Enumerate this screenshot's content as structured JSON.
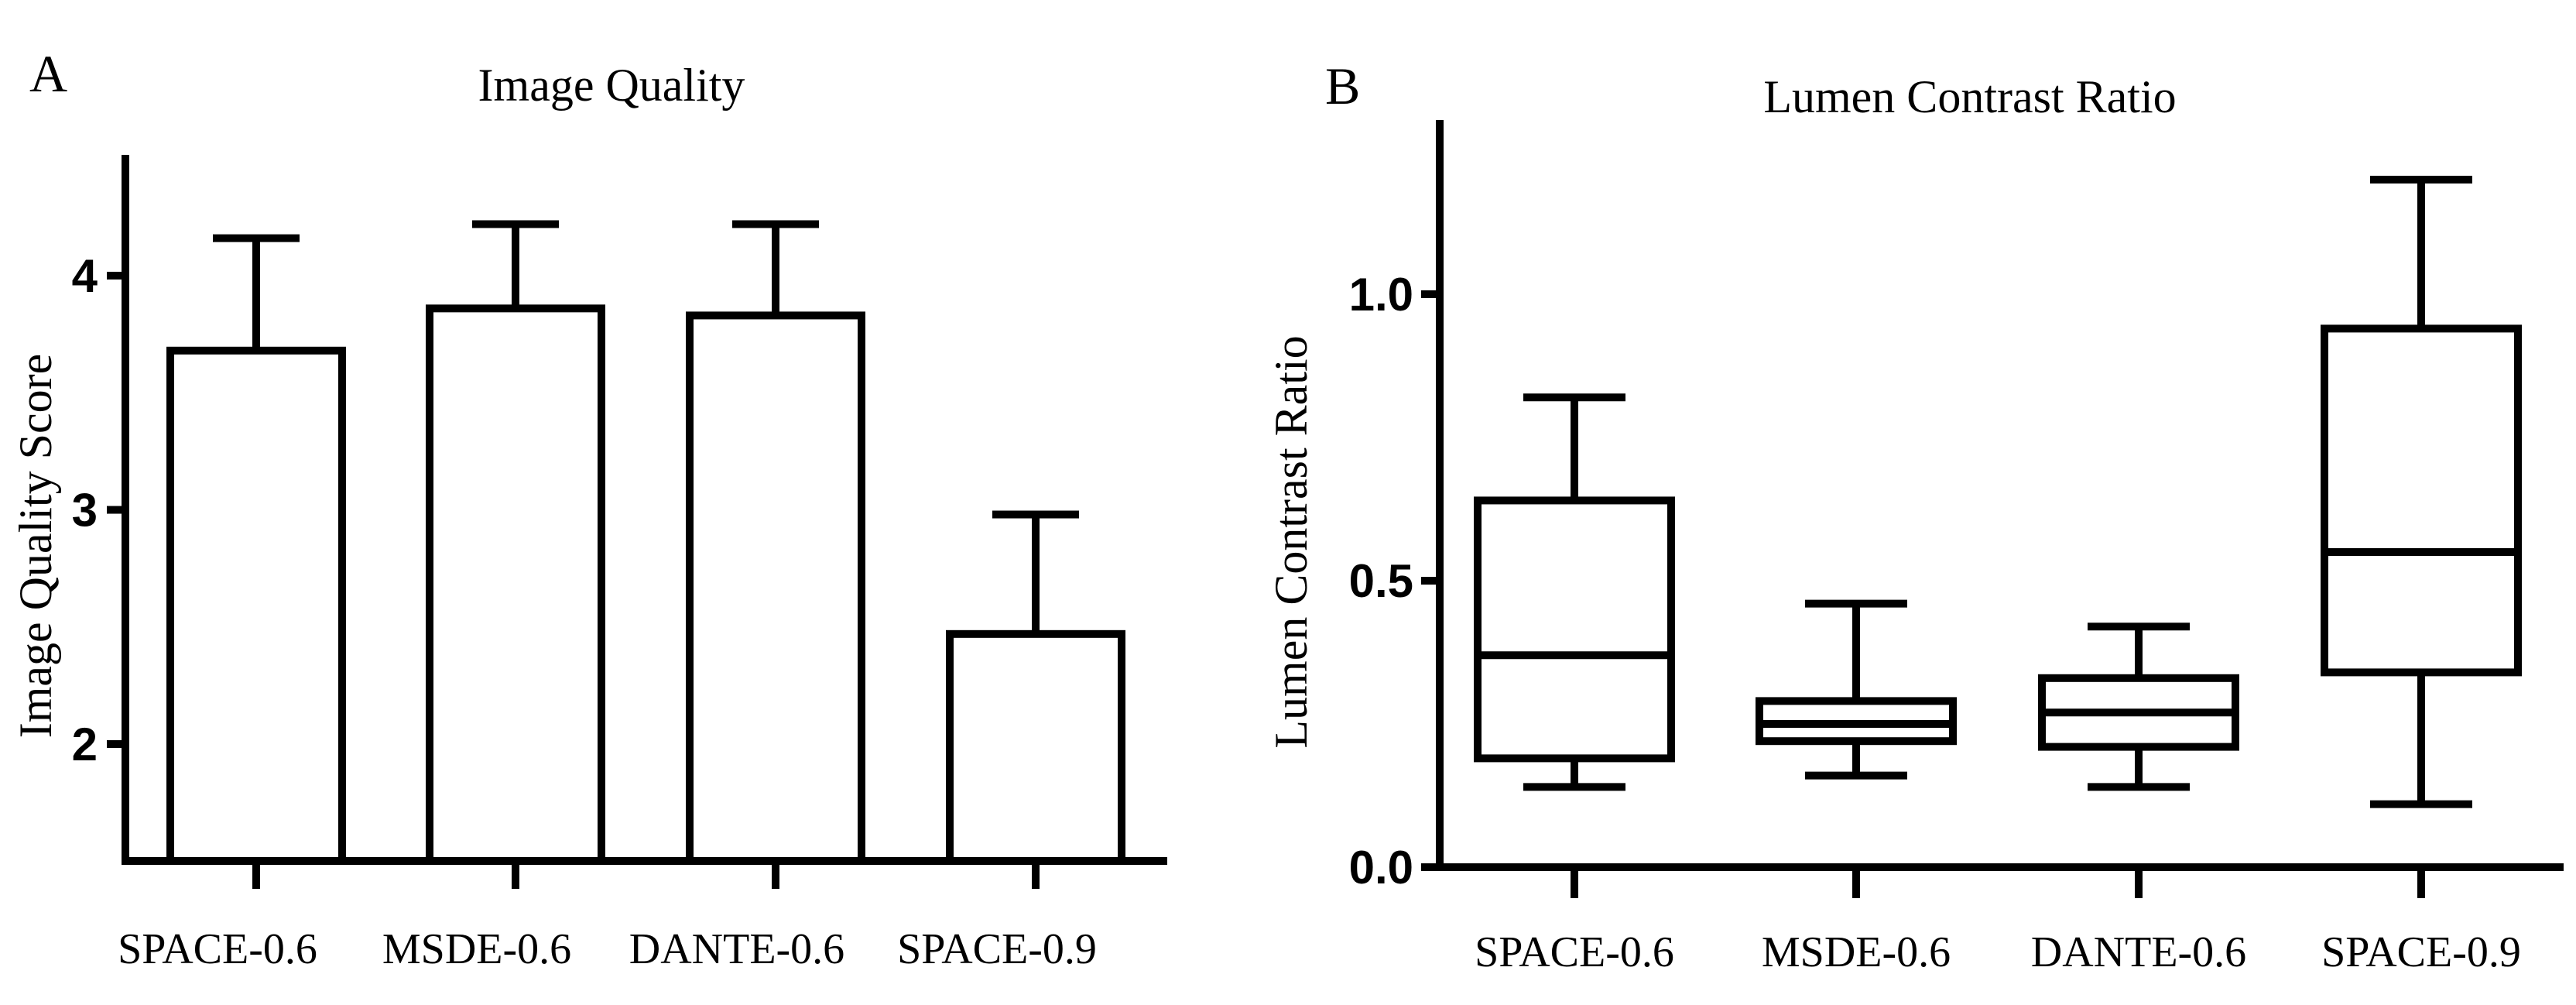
{
  "chart_data": [
    {
      "panel": "A",
      "type": "bar",
      "title": "Image Quality",
      "xlabel": "",
      "ylabel": "Image Quality  Score",
      "categories": [
        "SPACE-0.6",
        "MSDE-0.6",
        "DANTE-0.6",
        "SPACE-0.9"
      ],
      "values": [
        3.68,
        3.86,
        3.83,
        2.47
      ],
      "error_upper": [
        4.16,
        4.22,
        4.22,
        2.98
      ],
      "yticks": [
        2,
        3,
        4
      ],
      "ylim": [
        1.5,
        4.5
      ],
      "grid": false,
      "legend": "none"
    },
    {
      "panel": "B",
      "type": "box",
      "title": "Lumen Contrast Ratio",
      "xlabel": "",
      "ylabel": "Lumen Contrast Ratio",
      "categories": [
        "SPACE-0.6",
        "MSDE-0.6",
        "DANTE-0.6",
        "SPACE-0.9"
      ],
      "boxes": [
        {
          "min": 0.14,
          "q1": 0.19,
          "median": 0.37,
          "q3": 0.64,
          "max": 0.82
        },
        {
          "min": 0.16,
          "q1": 0.22,
          "median": 0.25,
          "q3": 0.29,
          "max": 0.46
        },
        {
          "min": 0.14,
          "q1": 0.21,
          "median": 0.27,
          "q3": 0.33,
          "max": 0.42
        },
        {
          "min": 0.11,
          "q1": 0.34,
          "median": 0.55,
          "q3": 0.94,
          "max": 1.2
        }
      ],
      "yticks": [
        "0.0",
        "0.5",
        "1.0"
      ],
      "ylim": [
        0,
        1.3
      ],
      "grid": false,
      "legend": "none"
    }
  ]
}
